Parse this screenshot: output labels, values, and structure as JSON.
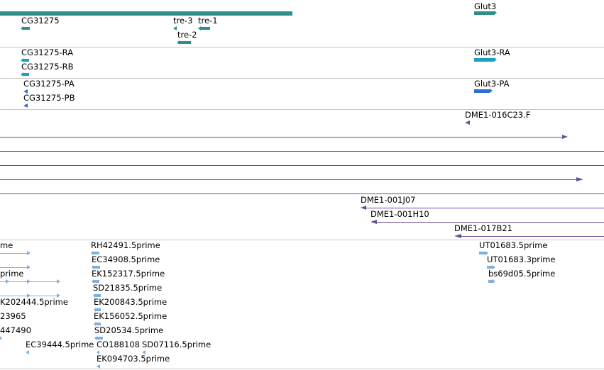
{
  "colors": {
    "gene": "#2f8f8a",
    "transcript": "#1aa0c0",
    "protein": "#2f6fd0",
    "clone": "#6a4a9a",
    "est": "#7fb0dc",
    "separator": "#c8c8c8"
  },
  "tracks": {
    "genes": {
      "labels": [
        "Glut3",
        "CG31275",
        "tre-3",
        "tre-1",
        "tre-2"
      ]
    },
    "transcripts": {
      "labels": [
        "CG31275-RA",
        "Glut3-RA",
        "CG31275-RB"
      ]
    },
    "proteins": {
      "labels": [
        "CG31275-PA",
        "Glut3-PA",
        "CG31275-PB"
      ]
    },
    "clones": {
      "labels": [
        "DME1-016C23.F",
        "DME1-001J07",
        "DME1-001H10",
        "DME1-017B21"
      ]
    },
    "ests": {
      "labels": [
        "me",
        "RH42491.5prime",
        "UT01683.5prime",
        "EC34908.5prime",
        "UT01683.3prime",
        "prime",
        "EK152317.5prime",
        "bs69d05.5prime",
        "SD21835.5prime",
        "K202444.5prime",
        "EK200843.5prime",
        "23965",
        "EK156052.5prime",
        "447490",
        "SD20534.5prime",
        "EC39444.5prime",
        "CO188108",
        "SD07116.5prime",
        "EK094703.5prime"
      ]
    }
  }
}
